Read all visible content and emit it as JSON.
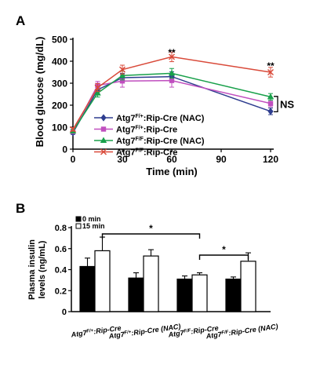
{
  "panels": {
    "a_label": "A",
    "b_label": "B"
  },
  "chart_data": [
    {
      "type": "line",
      "panel": "A",
      "xlabel": "Time (min)",
      "ylabel": "Blood glucose (mg/dL)",
      "x": [
        0,
        15,
        30,
        60,
        120
      ],
      "xticks": [
        "0",
        "30",
        "60",
        "90",
        "120"
      ],
      "xtick_values": [
        0,
        30,
        60,
        90,
        120
      ],
      "yticks": [
        "0",
        "100",
        "200",
        "300",
        "400",
        "500"
      ],
      "ytick_values": [
        0,
        100,
        200,
        300,
        400,
        500
      ],
      "xlim": [
        0,
        120
      ],
      "ylim": [
        0,
        500
      ],
      "series": [
        {
          "name_main": "Atg7",
          "name_sup": "F/+",
          "name_rest": ":Rip-Cre (NAC)",
          "marker": "diamond",
          "color": "#2e3d8f",
          "values": [
            75,
            270,
            325,
            330,
            172
          ],
          "errors": [
            8,
            18,
            20,
            22,
            15
          ]
        },
        {
          "name_main": "Atg7",
          "name_sup": "F/+",
          "name_rest": ":Rip-Cre",
          "marker": "square",
          "color": "#c04fbf",
          "values": [
            80,
            290,
            310,
            312,
            208
          ],
          "errors": [
            8,
            18,
            28,
            30,
            15
          ]
        },
        {
          "name_main": "Atg7",
          "name_sup": "F/F",
          "name_rest": ":Rip-Cre (NAC)",
          "marker": "triangle",
          "color": "#18a04a",
          "values": [
            82,
            255,
            335,
            345,
            238
          ],
          "errors": [
            8,
            18,
            20,
            22,
            15
          ]
        },
        {
          "name_main": "Atg7",
          "name_sup": "F/F",
          "name_rest": ":Rip-Cre",
          "marker": "cross",
          "color": "#d94a3a",
          "values": [
            90,
            280,
            362,
            420,
            350
          ],
          "errors": [
            8,
            18,
            20,
            22,
            22
          ]
        }
      ],
      "annotations": [
        "**",
        "**",
        "NS"
      ]
    },
    {
      "type": "bar",
      "panel": "B",
      "ylabel_line1": "Plasma insulin",
      "ylabel_line2": "levels (ng/mL)",
      "yticks": [
        "0",
        "0.2",
        "0.4",
        "0.6",
        "0.8"
      ],
      "ytick_values": [
        0,
        0.2,
        0.4,
        0.6,
        0.8
      ],
      "ylim": [
        0,
        0.8
      ],
      "categories": [
        {
          "main": "Atg7",
          "sup": "F/+",
          "rest": ":Rip-Cre"
        },
        {
          "main": "Atg7",
          "sup": "F/+",
          "rest": ":Rip-Cre (NAC)"
        },
        {
          "main": "Atg7",
          "sup": "F/F",
          "rest": ":Rip-Cre"
        },
        {
          "main": "Atg7",
          "sup": "F/F",
          "rest": ":Rip-Cre (NAC)"
        }
      ],
      "series": [
        {
          "name": "0 min",
          "color": "#000000",
          "values": [
            0.43,
            0.32,
            0.31,
            0.31
          ],
          "errors": [
            0.08,
            0.05,
            0.03,
            0.02
          ]
        },
        {
          "name": "15 min",
          "color": "#ffffff",
          "values": [
            0.58,
            0.53,
            0.35,
            0.48
          ],
          "errors": [
            0.13,
            0.06,
            0.02,
            0.08
          ]
        }
      ],
      "annotations": [
        "*",
        "*"
      ]
    }
  ]
}
